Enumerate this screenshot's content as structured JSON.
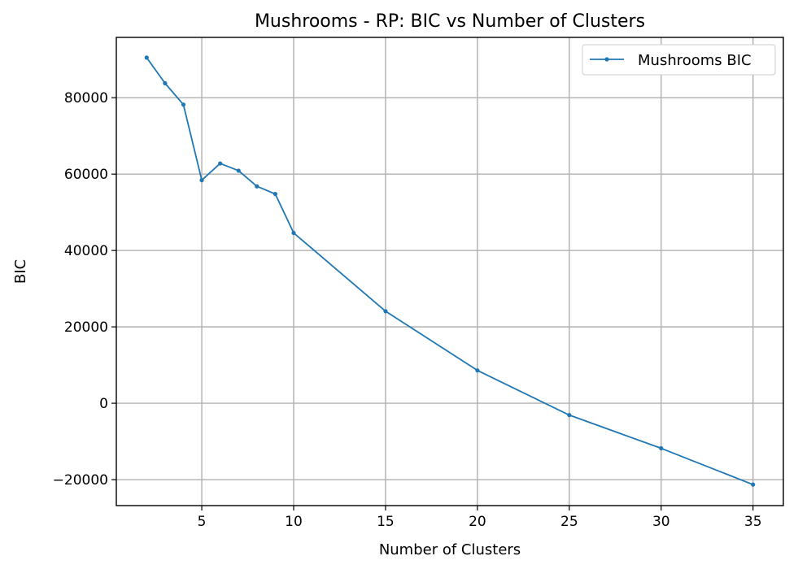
{
  "chart_data": {
    "type": "line",
    "title": "Mushrooms - RP: BIC vs Number of Clusters",
    "xlabel": "Number of Clusters",
    "ylabel": "BIC",
    "xlim": [
      0.35,
      36.65
    ],
    "ylim": [
      -26800,
      95800
    ],
    "xticks": [
      5,
      10,
      15,
      20,
      25,
      30,
      35
    ],
    "yticks": [
      -20000,
      0,
      20000,
      40000,
      60000,
      80000
    ],
    "ytick_labels": [
      "−20000",
      "0",
      "20000",
      "40000",
      "60000",
      "80000"
    ],
    "grid": true,
    "legend_position": "upper right",
    "series": [
      {
        "name": "Mushrooms BIC",
        "color": "#1f77b4",
        "marker": "circle",
        "x": [
          2,
          3,
          4,
          5,
          6,
          7,
          8,
          9,
          10,
          15,
          20,
          25,
          30,
          35
        ],
        "y": [
          90500,
          83800,
          78200,
          58400,
          62800,
          60900,
          56800,
          54800,
          44600,
          24100,
          8600,
          -3100,
          -11800,
          -21300
        ]
      }
    ]
  }
}
